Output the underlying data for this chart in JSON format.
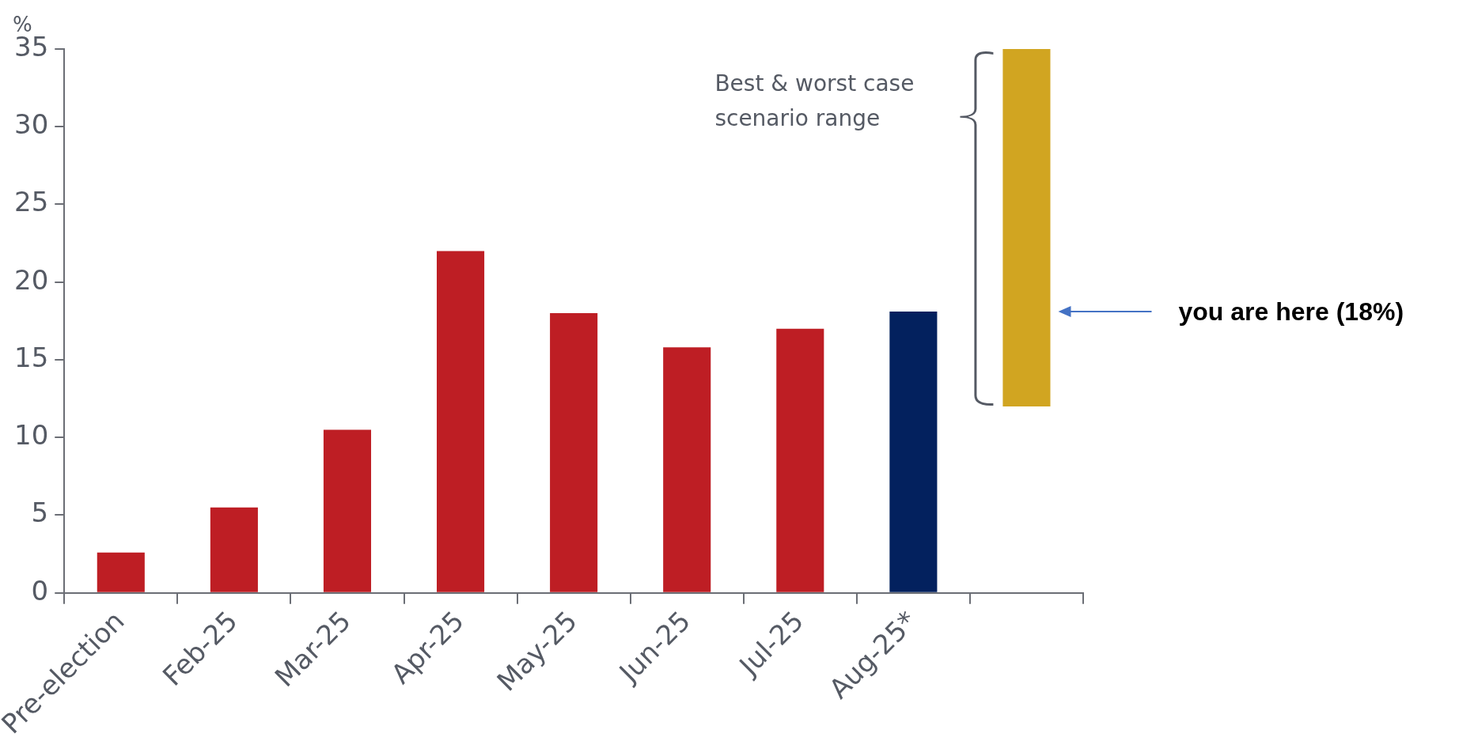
{
  "chart_data": {
    "type": "bar",
    "ylabel": "%",
    "categories": [
      "Pre-election",
      "Feb-25",
      "Mar-25",
      "Apr-25",
      "May-25",
      "Jun-25",
      "Jul-25",
      "Aug-25*",
      null
    ],
    "values": [
      2.6,
      5.5,
      10.5,
      22.0,
      18.0,
      15.8,
      17.0,
      18.1,
      23.0
    ],
    "base": [
      0,
      0,
      0,
      0,
      0,
      0,
      0,
      0,
      12.0
    ],
    "colors": [
      "#be1e24",
      "#be1e24",
      "#be1e24",
      "#be1e24",
      "#be1e24",
      "#be1e24",
      "#be1e24",
      "#03215e",
      "#d1a521"
    ],
    "ylim": [
      0,
      35
    ],
    "yticks": [
      0,
      5,
      10,
      15,
      20,
      25,
      30,
      35
    ],
    "grid": false,
    "legend": false,
    "annotations": [
      "Best & worst case scenario range",
      "you are here (18%)"
    ]
  }
}
